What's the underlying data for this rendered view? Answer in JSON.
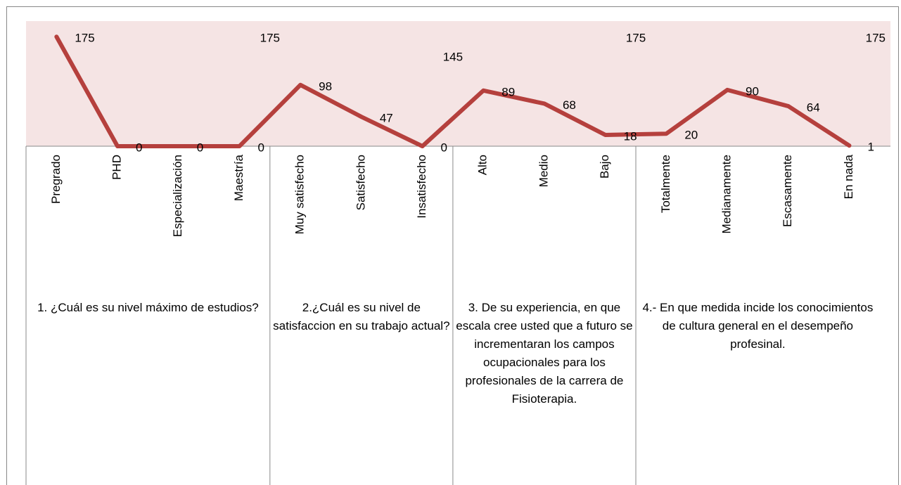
{
  "chart_data": {
    "type": "line",
    "categories": [
      "Pregrado",
      "PHD",
      "Especialización",
      "Maestría",
      "Muy satisfecho",
      "Satisfecho",
      "Insatisfecho",
      "Alto",
      "Medio",
      "Bajo",
      "Totalmente",
      "Medianamente",
      "Escasamente",
      "En nada"
    ],
    "series": [
      {
        "color": "#b5403d",
        "values": [
          175,
          0,
          0,
          0,
          98,
          47,
          0,
          89,
          68,
          18,
          20,
          90,
          64,
          1
        ]
      }
    ],
    "groups": [
      {
        "label": "1. ¿Cuál es su nivel máximo de estudios?",
        "size": 4,
        "total": 175
      },
      {
        "label": "2.¿Cuál es su nivel de satisfaccion en su trabajo actual?",
        "size": 3,
        "total": 145
      },
      {
        "label": "3. De su experiencia, en que escala cree usted que a futuro se incrementaran los campos ocupacionales para los profesionales de la carrera de Fisioterapia.",
        "size": 3,
        "total": 175
      },
      {
        "label": "4.- En que medida incide los conocimientos de cultura general en el desempeño profesinal.",
        "size": 4,
        "total": 175
      }
    ],
    "ylim": [
      0,
      200
    ],
    "plot_background": "#f5e4e4"
  }
}
